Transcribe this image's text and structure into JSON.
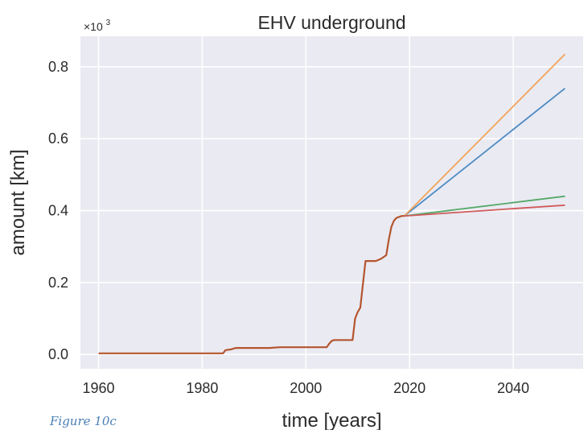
{
  "chart_data": {
    "type": "line",
    "title": "EHV underground",
    "xlabel": "time [years]",
    "ylabel": "amount [km]",
    "y_multiplier": "×10",
    "y_multiplier_exp": "3",
    "xlim": [
      1956.5,
      2053.5
    ],
    "ylim": [
      -0.04,
      0.885
    ],
    "xticks": [
      1960,
      1980,
      2000,
      2020,
      2040
    ],
    "xtick_labels": [
      "1960",
      "1980",
      "2000",
      "2020",
      "2040"
    ],
    "yticks": [
      0.0,
      0.2,
      0.4,
      0.6,
      0.8
    ],
    "ytick_labels": [
      "0.0",
      "0.2",
      "0.4",
      "0.6",
      "0.8"
    ],
    "grid": true,
    "historical": {
      "x": [
        1960,
        1984,
        1984.5,
        1985.5,
        1986.5,
        1993,
        1995,
        2004,
        2004.5,
        2005,
        2005.5,
        2009,
        2009.5,
        2010,
        2010.5,
        2011.5,
        2013.5,
        2014.5,
        2015.5,
        2016,
        2016.5,
        2017,
        2017.5,
        2018.5,
        2019
      ],
      "y": [
        0.003,
        0.003,
        0.012,
        0.014,
        0.018,
        0.018,
        0.02,
        0.02,
        0.03,
        0.038,
        0.04,
        0.04,
        0.1,
        0.118,
        0.13,
        0.26,
        0.26,
        0.266,
        0.276,
        0.32,
        0.355,
        0.372,
        0.38,
        0.385,
        0.385
      ]
    },
    "series": [
      {
        "x": [
          2019,
          2050
        ],
        "y": [
          0.385,
          0.74
        ],
        "color": "#4c8bc4"
      },
      {
        "x": [
          2019,
          2050
        ],
        "y": [
          0.385,
          0.835
        ],
        "color": "#f0a45d"
      },
      {
        "x": [
          2019,
          2050
        ],
        "y": [
          0.385,
          0.44
        ],
        "color": "#55a868"
      },
      {
        "x": [
          2019,
          2050
        ],
        "y": [
          0.385,
          0.415
        ],
        "color": "#d05b5b"
      }
    ],
    "historical_color": "#b5552f",
    "background_color": "#eaeaf2"
  },
  "caption": "Figure 10c"
}
